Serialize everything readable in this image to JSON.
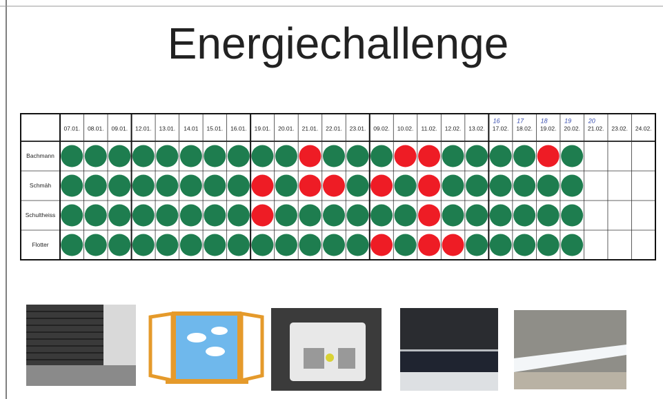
{
  "title": "Energiechallenge",
  "table": {
    "header": [
      "07.01.",
      "08.01.",
      "09.01.",
      "12.01.",
      "13.01.",
      "14.01",
      "15.01.",
      "16.01.",
      "19.01.",
      "20.01.",
      "21.01.",
      "22.01.",
      "23.01.",
      "09.02.",
      "10.02.",
      "11.02.",
      "12.02.",
      "13.02.",
      "17.02.",
      "18.02.",
      "19.02.",
      "20.02.",
      "21.02.",
      "23.02.",
      "24.02."
    ],
    "header_notes": [
      null,
      null,
      null,
      null,
      null,
      null,
      null,
      null,
      null,
      null,
      null,
      null,
      null,
      null,
      null,
      null,
      null,
      null,
      "16",
      "17",
      "18",
      "19",
      "20",
      null,
      null
    ],
    "rows": [
      {
        "name": "Bachmann",
        "dots": [
          "#1e7d4f",
          "#1e7d4f",
          "#1e7d4f",
          "#1e7d4f",
          "#1e7d4f",
          "#1e7d4f",
          "#1e7d4f",
          "#1e7d4f",
          "#1e7d4f",
          "#1e7d4f",
          "#ee1c25",
          "#1e7d4f",
          "#1e7d4f",
          "#1e7d4f",
          "#ee1c25",
          "#ee1c25",
          "#1e7d4f",
          "#1e7d4f",
          "#1e7d4f",
          "#1e7d4f",
          "#ee1c25",
          "#1e7d4f",
          null,
          null,
          null
        ]
      },
      {
        "name": "Schmäh",
        "dots": [
          "#1e7d4f",
          "#1e7d4f",
          "#1e7d4f",
          "#1e7d4f",
          "#1e7d4f",
          "#1e7d4f",
          "#1e7d4f",
          "#1e7d4f",
          "#ee1c25",
          "#1e7d4f",
          "#ee1c25",
          "#ee1c25",
          "#1e7d4f",
          "#ee1c25",
          "#1e7d4f",
          "#ee1c25",
          "#1e7d4f",
          "#1e7d4f",
          "#1e7d4f",
          "#1e7d4f",
          "#1e7d4f",
          "#1e7d4f",
          null,
          null,
          null
        ]
      },
      {
        "name": "Schultheiss",
        "dots": [
          "#1e7d4f",
          "#1e7d4f",
          "#1e7d4f",
          "#1e7d4f",
          "#1e7d4f",
          "#1e7d4f",
          "#1e7d4f",
          "#1e7d4f",
          "#ee1c25",
          "#1e7d4f",
          "#1e7d4f",
          "#1e7d4f",
          "#1e7d4f",
          "#1e7d4f",
          "#1e7d4f",
          "#ee1c25",
          "#1e7d4f",
          "#1e7d4f",
          "#1e7d4f",
          "#1e7d4f",
          "#1e7d4f",
          "#1e7d4f",
          null,
          null,
          null
        ]
      },
      {
        "name": "Flotter",
        "dots": [
          "#1e7d4f",
          "#1e7d4f",
          "#1e7d4f",
          "#1e7d4f",
          "#1e7d4f",
          "#1e7d4f",
          "#1e7d4f",
          "#1e7d4f",
          "#1e7d4f",
          "#1e7d4f",
          "#1e7d4f",
          "#1e7d4f",
          "#1e7d4f",
          "#ee1c25",
          "#1e7d4f",
          "#ee1c25",
          "#ee1c25",
          "#1e7d4f",
          "#1e7d4f",
          "#1e7d4f",
          "#1e7d4f",
          "#1e7d4f",
          null,
          null,
          null
        ]
      }
    ]
  }
}
